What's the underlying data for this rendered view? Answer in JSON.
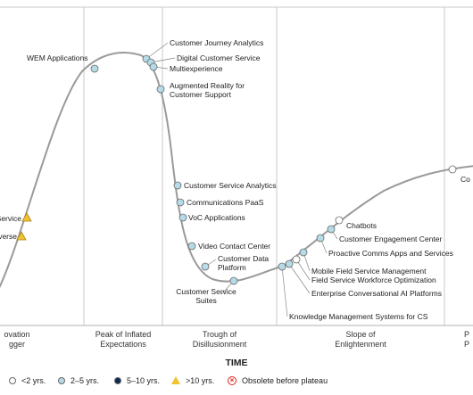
{
  "colors": {
    "curve": "#9a9a9a",
    "lt2": "#ffffff",
    "y2to5": "#b5dbe8",
    "y5to10": "#0d2a52",
    "gt10": "#f2c233",
    "obsolete": "#e2231a"
  },
  "phases": [
    {
      "id": "innovation",
      "lines": [
        "ovation",
        "gger"
      ]
    },
    {
      "id": "peak",
      "lines": [
        "Peak of Inflated",
        "Expectations"
      ]
    },
    {
      "id": "trough",
      "lines": [
        "Trough of",
        "Disillusionment"
      ]
    },
    {
      "id": "slope",
      "lines": [
        "Slope of",
        "Enlightenment"
      ]
    },
    {
      "id": "plateau",
      "lines": [
        "P",
        "P"
      ]
    }
  ],
  "x_axis_label": "TIME",
  "legend": [
    {
      "symbol": "white-circle",
      "label": "<2 yrs."
    },
    {
      "symbol": "light-blue-circle",
      "label": "2–5 yrs."
    },
    {
      "symbol": "dark-blue-circle",
      "label": "5–10 yrs."
    },
    {
      "symbol": "yellow-triangle",
      "label": ">10 yrs."
    },
    {
      "symbol": "red-x-circle",
      "label": "Obsolete before plateau"
    }
  ],
  "technologies": [
    {
      "name": "Service",
      "marker": "gt10"
    },
    {
      "name": "verse",
      "marker": "gt10"
    },
    {
      "name": "WEM Applications",
      "marker": "y2to5"
    },
    {
      "name": "Customer Journey Analytics",
      "marker": "y2to5"
    },
    {
      "name": "Digital Customer Service",
      "marker": "y2to5"
    },
    {
      "name": "Multiexperience",
      "marker": "y2to5"
    },
    {
      "name": "Augmented Reality for Customer Support",
      "marker": "y2to5"
    },
    {
      "name": "Customer Service Analytics",
      "marker": "y2to5"
    },
    {
      "name": "Communications PaaS",
      "marker": "y2to5"
    },
    {
      "name": "VoC Applications",
      "marker": "y2to5"
    },
    {
      "name": "Video Contact Center",
      "marker": "y2to5"
    },
    {
      "name": "Customer Data Platform",
      "marker": "y2to5"
    },
    {
      "name": "Customer Service Suites",
      "marker": "y2to5"
    },
    {
      "name": "Knowledge Management Systems for CS",
      "marker": "y2to5"
    },
    {
      "name": "Enterprise Conversational AI Platforms",
      "marker": "y2to5"
    },
    {
      "name": "Field Service Workforce Optimization",
      "marker": "lt2"
    },
    {
      "name": "Mobile Field Service Management",
      "marker": "y2to5"
    },
    {
      "name": "Proactive Comms Apps and Services",
      "marker": "y2to5"
    },
    {
      "name": "Customer Engagement Center",
      "marker": "y2to5"
    },
    {
      "name": "Chatbots",
      "marker": "lt2"
    },
    {
      "name": "Co",
      "marker": "lt2"
    }
  ]
}
